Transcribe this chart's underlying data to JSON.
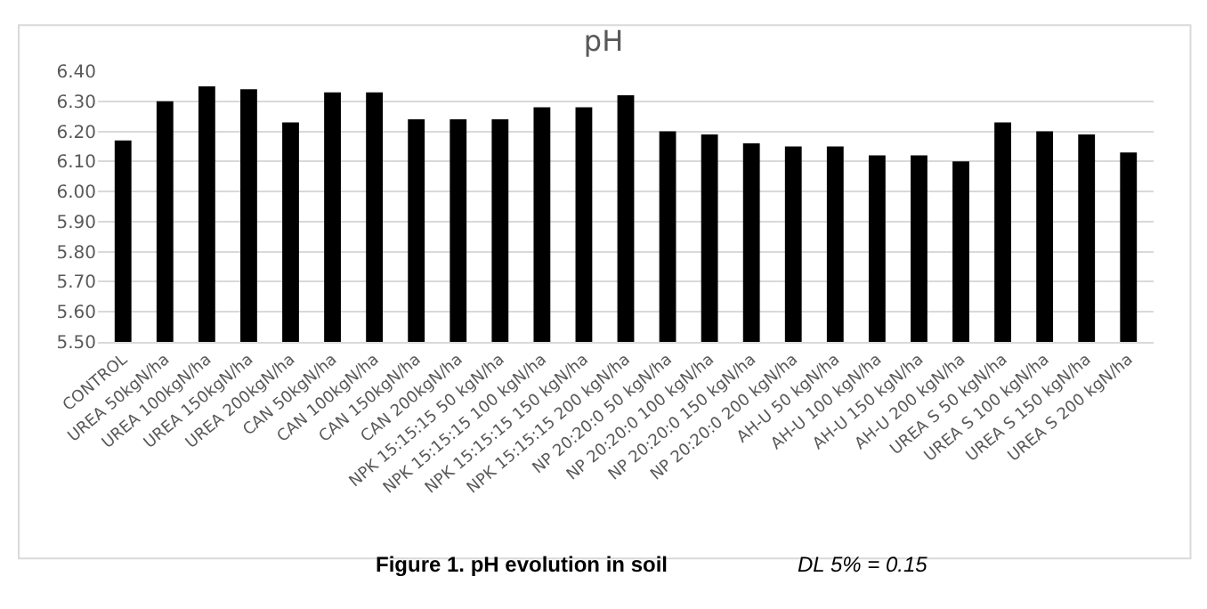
{
  "chart_data": {
    "type": "bar",
    "title": "pH",
    "categories": [
      "CONTROL",
      "UREA 50kgN/ha",
      "UREA 100kgN/ha",
      "UREA 150kgN/ha",
      "UREA 200kgN/ha",
      "CAN 50kgN/ha",
      "CAN 100kgN/ha",
      "CAN 150kgN/ha",
      "CAN 200kgN/ha",
      "NPK 15:15:15 50 kgN/ha",
      "NPK 15:15:15 100 kgN/ha",
      "NPK 15:15:15 150 kgN/ha",
      "NPK 15:15:15 200 kgN/ha",
      "NP 20:20:0 50 kgN/ha",
      "NP 20:20:0 100 kgN/ha",
      "NP 20:20:0 150 kgN/ha",
      "NP 20:20:0 200 kgN/ha",
      "AH-U 50 kgN/ha",
      "AH-U 100 kgN/ha",
      "AH-U 150 kgN/ha",
      "AH-U 200 kgN/ha",
      "UREA S 50 kgN/ha",
      "UREA S 100 kgN/ha",
      "UREA S 150 kgN/ha",
      "UREA S 200 kgN/ha"
    ],
    "values": [
      6.17,
      6.3,
      6.35,
      6.34,
      6.23,
      6.33,
      6.33,
      6.24,
      6.24,
      6.24,
      6.28,
      6.28,
      6.32,
      6.2,
      6.19,
      6.16,
      6.15,
      6.15,
      6.12,
      6.12,
      6.1,
      6.23,
      6.2,
      6.19,
      6.13
    ],
    "color": "#000000",
    "ylim": [
      5.5,
      6.4
    ],
    "yticks": [
      {
        "value": 5.5,
        "label": "5.50"
      },
      {
        "value": 5.6,
        "label": "5.60"
      },
      {
        "value": 5.7,
        "label": "5.70"
      },
      {
        "value": 5.8,
        "label": "5.80"
      },
      {
        "value": 5.9,
        "label": "5.90"
      },
      {
        "value": 6.0,
        "label": "6.00"
      },
      {
        "value": 6.1,
        "label": "6.10"
      },
      {
        "value": 6.2,
        "label": "6.20"
      },
      {
        "value": 6.3,
        "label": "6.30"
      },
      {
        "value": 6.4,
        "label": "6.40"
      }
    ],
    "grid": "y",
    "annotations": [
      "Figure 1. pH evolution in soil",
      "DL 5% = 0.15"
    ]
  }
}
